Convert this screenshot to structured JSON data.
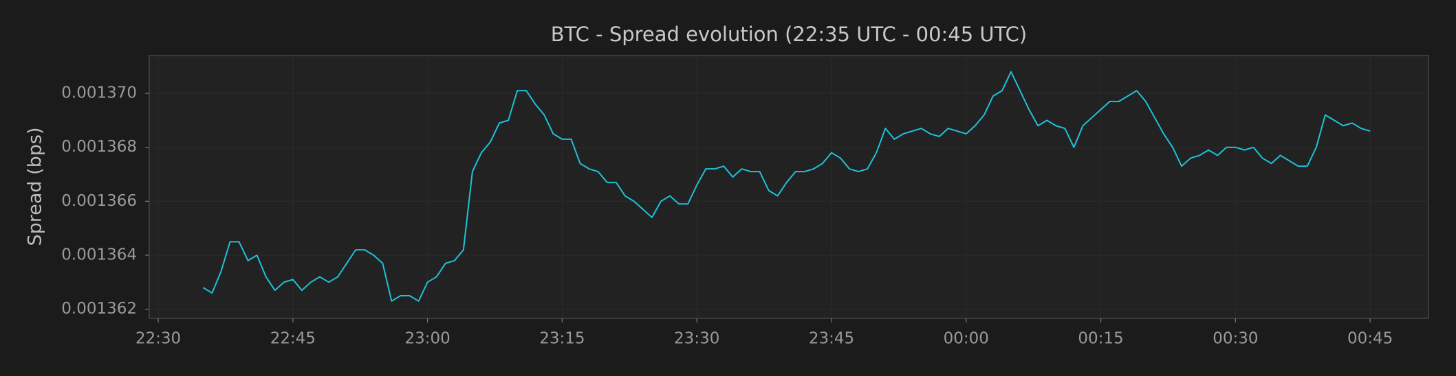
{
  "chart_data": {
    "type": "line",
    "title": "BTC - Spread evolution (22:35 UTC - 00:45 UTC)",
    "y_label": "Spread (bps)",
    "color": "#1cc3dc",
    "grid": true,
    "x": [
      1355,
      1356,
      1357,
      1358,
      1359,
      1360,
      1361,
      1362,
      1363,
      1364,
      1365,
      1366,
      1367,
      1368,
      1369,
      1370,
      1371,
      1372,
      1373,
      1374,
      1375,
      1376,
      1377,
      1378,
      1379,
      1380,
      1381,
      1382,
      1383,
      1384,
      1385,
      1386,
      1387,
      1388,
      1389,
      1390,
      1391,
      1392,
      1393,
      1394,
      1395,
      1396,
      1397,
      1398,
      1399,
      1400,
      1401,
      1402,
      1403,
      1404,
      1405,
      1406,
      1407,
      1408,
      1409,
      1410,
      1411,
      1412,
      1413,
      1414,
      1415,
      1416,
      1417,
      1418,
      1419,
      1420,
      1421,
      1422,
      1423,
      1424,
      1425,
      1426,
      1427,
      1428,
      1429,
      1430,
      1431,
      1432,
      1433,
      1434,
      1435,
      1436,
      1437,
      1438,
      1439,
      1440,
      1441,
      1442,
      1443,
      1444,
      1445,
      1446,
      1447,
      1448,
      1449,
      1450,
      1451,
      1452,
      1453,
      1454,
      1455,
      1456,
      1457,
      1458,
      1459,
      1460,
      1461,
      1462,
      1463,
      1464,
      1465,
      1466,
      1467,
      1468,
      1469,
      1470,
      1471,
      1472,
      1473,
      1474,
      1475,
      1476,
      1477,
      1478,
      1479,
      1480,
      1481,
      1482,
      1483,
      1484,
      1485
    ],
    "values": [
      0.0013628,
      0.0013626,
      0.0013634,
      0.0013645,
      0.0013645,
      0.0013638,
      0.001364,
      0.0013632,
      0.0013627,
      0.001363,
      0.0013631,
      0.0013627,
      0.001363,
      0.0013632,
      0.001363,
      0.0013632,
      0.0013637,
      0.0013642,
      0.0013642,
      0.001364,
      0.0013637,
      0.0013623,
      0.0013625,
      0.0013625,
      0.0013623,
      0.001363,
      0.0013632,
      0.0013637,
      0.0013638,
      0.0013642,
      0.0013671,
      0.0013678,
      0.0013682,
      0.0013689,
      0.001369,
      0.0013701,
      0.0013701,
      0.0013696,
      0.0013692,
      0.0013685,
      0.0013683,
      0.0013683,
      0.0013674,
      0.0013672,
      0.0013671,
      0.0013667,
      0.0013667,
      0.0013662,
      0.001366,
      0.0013657,
      0.0013654,
      0.001366,
      0.0013662,
      0.0013659,
      0.0013659,
      0.0013666,
      0.0013672,
      0.0013672,
      0.0013673,
      0.0013669,
      0.0013672,
      0.0013671,
      0.0013671,
      0.0013664,
      0.0013662,
      0.0013667,
      0.0013671,
      0.0013671,
      0.0013672,
      0.0013674,
      0.0013678,
      0.0013676,
      0.0013672,
      0.0013671,
      0.0013672,
      0.0013678,
      0.0013687,
      0.0013683,
      0.0013685,
      0.0013686,
      0.0013687,
      0.0013685,
      0.0013684,
      0.0013687,
      0.0013686,
      0.0013685,
      0.0013688,
      0.0013692,
      0.0013699,
      0.0013701,
      0.0013708,
      0.0013701,
      0.0013694,
      0.0013688,
      0.001369,
      0.0013688,
      0.0013687,
      0.001368,
      0.0013688,
      0.0013691,
      0.0013694,
      0.0013697,
      0.0013697,
      0.0013699,
      0.0013701,
      0.0013697,
      0.0013691,
      0.0013685,
      0.001368,
      0.0013673,
      0.0013676,
      0.0013677,
      0.0013679,
      0.0013677,
      0.001368,
      0.001368,
      0.0013679,
      0.001368,
      0.0013676,
      0.0013674,
      0.0013677,
      0.0013675,
      0.0013673,
      0.0013673,
      0.001368,
      0.0013692,
      0.001369,
      0.0013688,
      0.0013689,
      0.0013687,
      0.0013686
    ],
    "xlim": [
      1349,
      1491.5
    ],
    "ylim": [
      0.00136166,
      0.0013714
    ],
    "xticks": [
      {
        "value": 1350,
        "label": "22:30"
      },
      {
        "value": 1365,
        "label": "22:45"
      },
      {
        "value": 1380,
        "label": "23:00"
      },
      {
        "value": 1395,
        "label": "23:15"
      },
      {
        "value": 1410,
        "label": "23:30"
      },
      {
        "value": 1425,
        "label": "23:45"
      },
      {
        "value": 1440,
        "label": "00:00"
      },
      {
        "value": 1455,
        "label": "00:15"
      },
      {
        "value": 1470,
        "label": "00:30"
      },
      {
        "value": 1485,
        "label": "00:45"
      }
    ],
    "yticks": [
      {
        "value": 0.001362,
        "label": "0.001362"
      },
      {
        "value": 0.001364,
        "label": "0.001364"
      },
      {
        "value": 0.001366,
        "label": "0.001366"
      },
      {
        "value": 0.001368,
        "label": "0.001368"
      },
      {
        "value": 0.00137,
        "label": "0.001370"
      }
    ]
  }
}
